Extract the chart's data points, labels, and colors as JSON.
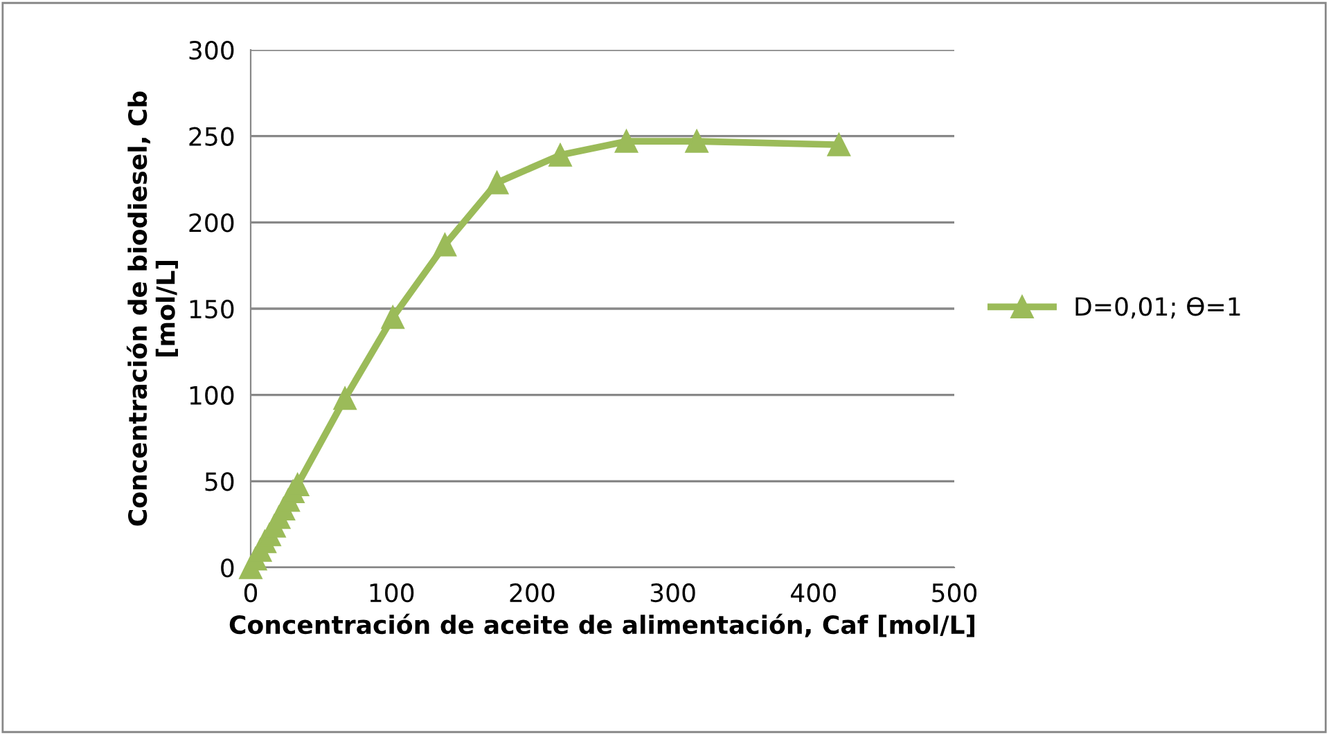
{
  "chart_data": {
    "type": "line",
    "xlabel": "Concentración de aceite de alimentación, Caf [mol/L]",
    "ylabel": "Concentración de biodiesel, Cb\n[mol/L]",
    "series": [
      {
        "name": "D=0,01; ϴ=1",
        "color": "#9bbb59",
        "x": [
          0,
          3.3,
          6.7,
          10,
          13.3,
          16.7,
          20,
          23.3,
          26.7,
          30,
          33.3,
          67,
          101,
          138,
          175,
          220,
          267,
          317,
          418
        ],
        "values": [
          0,
          5,
          10,
          15,
          19,
          24,
          29,
          34,
          39,
          44,
          48,
          98,
          145,
          187,
          223,
          239,
          247,
          247,
          245
        ]
      }
    ],
    "xlim": [
      0,
      500
    ],
    "xticks": [
      0,
      100,
      200,
      300,
      400,
      500
    ],
    "ylim": [
      0,
      300
    ],
    "yticks": [
      0,
      50,
      100,
      150,
      200,
      250,
      300
    ],
    "grid": "y",
    "legend": "right",
    "marker": "triangle",
    "line_style": "solid"
  }
}
